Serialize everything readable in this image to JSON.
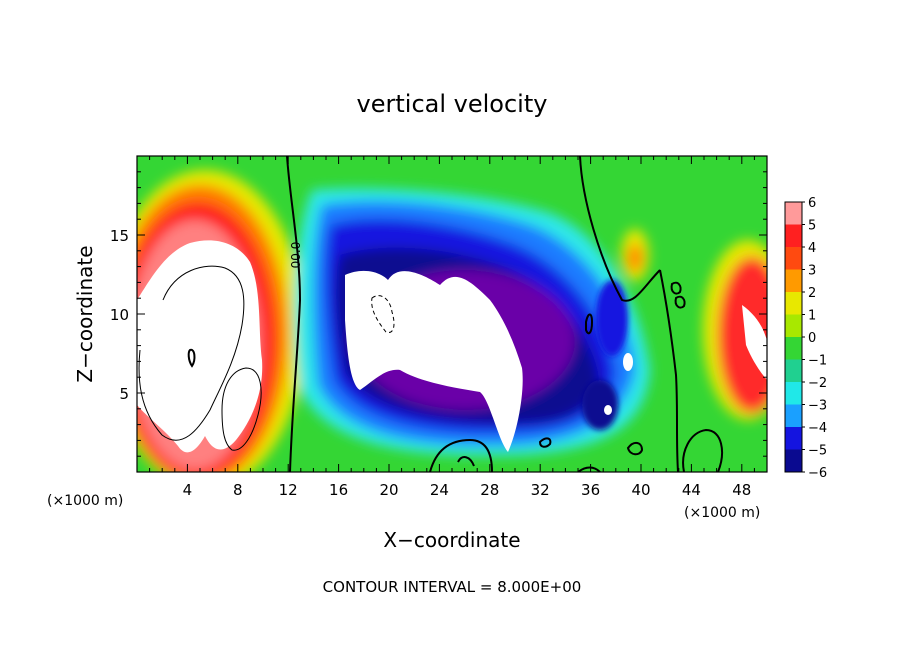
{
  "chart_data": {
    "type": "heatmap",
    "title": "vertical velocity",
    "xlabel": "X−coordinate",
    "ylabel": "Z−coordinate",
    "x_unit": "(×1000 m)",
    "x_unit_right": "(×1000 m)",
    "xlim": [
      0,
      50
    ],
    "ylim": [
      0,
      20
    ],
    "x_ticks": [
      4,
      8,
      12,
      16,
      20,
      24,
      28,
      32,
      36,
      40,
      44,
      48
    ],
    "y_ticks": [
      5,
      10,
      15
    ],
    "colorbar": {
      "levels": [
        6,
        5,
        4,
        3,
        2,
        1,
        0,
        -1,
        -2,
        -3,
        -4,
        -5,
        -6
      ],
      "labels": [
        "6",
        "5",
        "4",
        "3",
        "2",
        "1",
        "0",
        "−1",
        "−2",
        "−3",
        "−4",
        "−5",
        "−6"
      ]
    },
    "contour_label": "00.0",
    "footer": "CONTOUR INTERVAL = 8.000E+00"
  }
}
